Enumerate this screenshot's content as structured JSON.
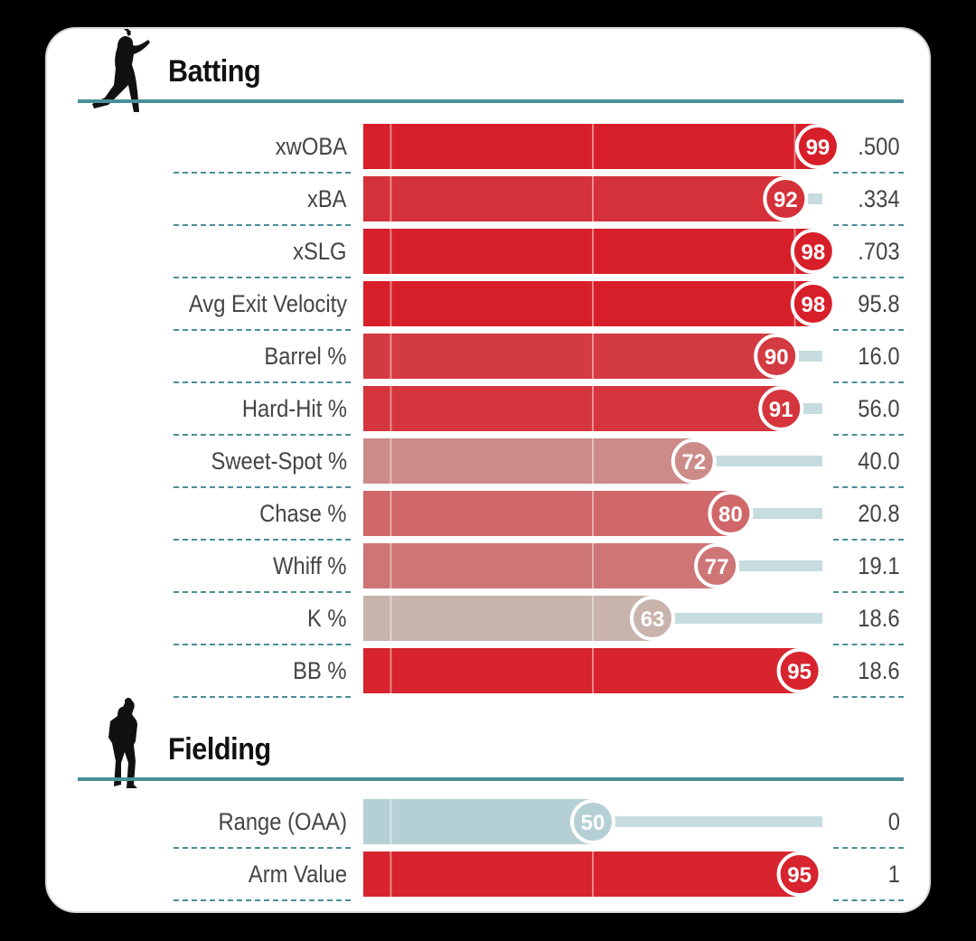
{
  "chart_data": {
    "type": "bar",
    "title": "",
    "xlabel": "",
    "ylabel": "",
    "xlim": [
      0,
      100
    ],
    "grid": true,
    "sections": [
      {
        "title": "Batting",
        "icon": "batter-silhouette-icon",
        "metrics": [
          {
            "label": "xwOBA",
            "percentile": 99,
            "value": ".500"
          },
          {
            "label": "xBA",
            "percentile": 92,
            "value": ".334"
          },
          {
            "label": "xSLG",
            "percentile": 98,
            "value": ".703"
          },
          {
            "label": "Avg Exit Velocity",
            "percentile": 98,
            "value": "95.8"
          },
          {
            "label": "Barrel %",
            "percentile": 90,
            "value": "16.0"
          },
          {
            "label": "Hard-Hit %",
            "percentile": 91,
            "value": "56.0"
          },
          {
            "label": "Sweet-Spot %",
            "percentile": 72,
            "value": "40.0"
          },
          {
            "label": "Chase %",
            "percentile": 80,
            "value": "20.8"
          },
          {
            "label": "Whiff %",
            "percentile": 77,
            "value": "19.1"
          },
          {
            "label": "K %",
            "percentile": 63,
            "value": "18.6"
          },
          {
            "label": "BB %",
            "percentile": 95,
            "value": "18.6"
          }
        ]
      },
      {
        "title": "Fielding",
        "icon": "fielder-silhouette-icon",
        "metrics": [
          {
            "label": "Range (OAA)",
            "percentile": 50,
            "value": "0"
          },
          {
            "label": "Arm Value",
            "percentile": 95,
            "value": "1"
          }
        ]
      }
    ]
  },
  "colors": {
    "rule": "#4a8f96",
    "track": "#c6dcde",
    "low": "#b5d0d4",
    "mid": "#c8b4ac",
    "high": "#d71f2a"
  }
}
